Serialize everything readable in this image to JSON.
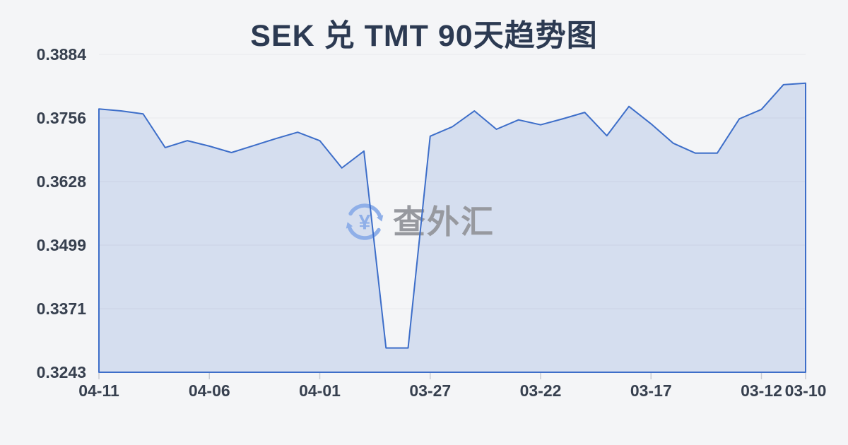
{
  "page": {
    "background_color": "#f4f5f7"
  },
  "title": "SEK 兑 TMT 90天趋势图",
  "watermark": {
    "icon": "circular-exchange-arrows-yen-icon",
    "icon_glyph": "¥",
    "icon_color": "#8fafe8",
    "text": "查外汇",
    "text_color": "#97999f"
  },
  "chart_data": {
    "type": "area",
    "title": "SEK 兑 TMT 90天趋势图",
    "x": [
      "04-11",
      "04-10",
      "04-09",
      "04-08",
      "04-07",
      "04-06",
      "04-05",
      "04-04",
      "04-03",
      "04-02",
      "04-01",
      "03-31",
      "03-30",
      "03-29",
      "03-28",
      "03-27",
      "03-26",
      "03-25",
      "03-24",
      "03-23",
      "03-22",
      "03-21",
      "03-20",
      "03-19",
      "03-18",
      "03-17",
      "03-16",
      "03-15",
      "03-14",
      "03-13",
      "03-12",
      "03-11",
      "03-10"
    ],
    "values": [
      0.3774,
      0.377,
      0.3764,
      0.3696,
      0.371,
      0.3699,
      0.3686,
      0.37,
      0.3714,
      0.3727,
      0.371,
      0.3655,
      0.3689,
      0.3292,
      0.3292,
      0.3719,
      0.3738,
      0.377,
      0.3733,
      0.3752,
      0.3742,
      0.3754,
      0.3767,
      0.372,
      0.3779,
      0.3744,
      0.3705,
      0.3685,
      0.3685,
      0.3754,
      0.3773,
      0.3823,
      0.3826
    ],
    "ylim": [
      0.3243,
      0.3884
    ],
    "y_tick_labels": [
      "0.3884",
      "0.3756",
      "0.3628",
      "0.3499",
      "0.3371",
      "0.3243"
    ],
    "x_tick_labels": [
      "04-11",
      "04-06",
      "04-01",
      "03-27",
      "03-22",
      "03-17",
      "03-12",
      "03-10"
    ],
    "x_tick_indices": [
      0,
      5,
      10,
      15,
      20,
      25,
      30,
      32
    ],
    "grid": true,
    "legend": false,
    "xlabel": "",
    "ylabel": "",
    "line_color": "#3d6ec9",
    "fill_color": "rgba(61,110,201,0.17)",
    "grid_color": "rgba(25,35,60,0.055)",
    "tick_mark_color": "#c9ccd3",
    "axis_text_color": "#37404f"
  }
}
